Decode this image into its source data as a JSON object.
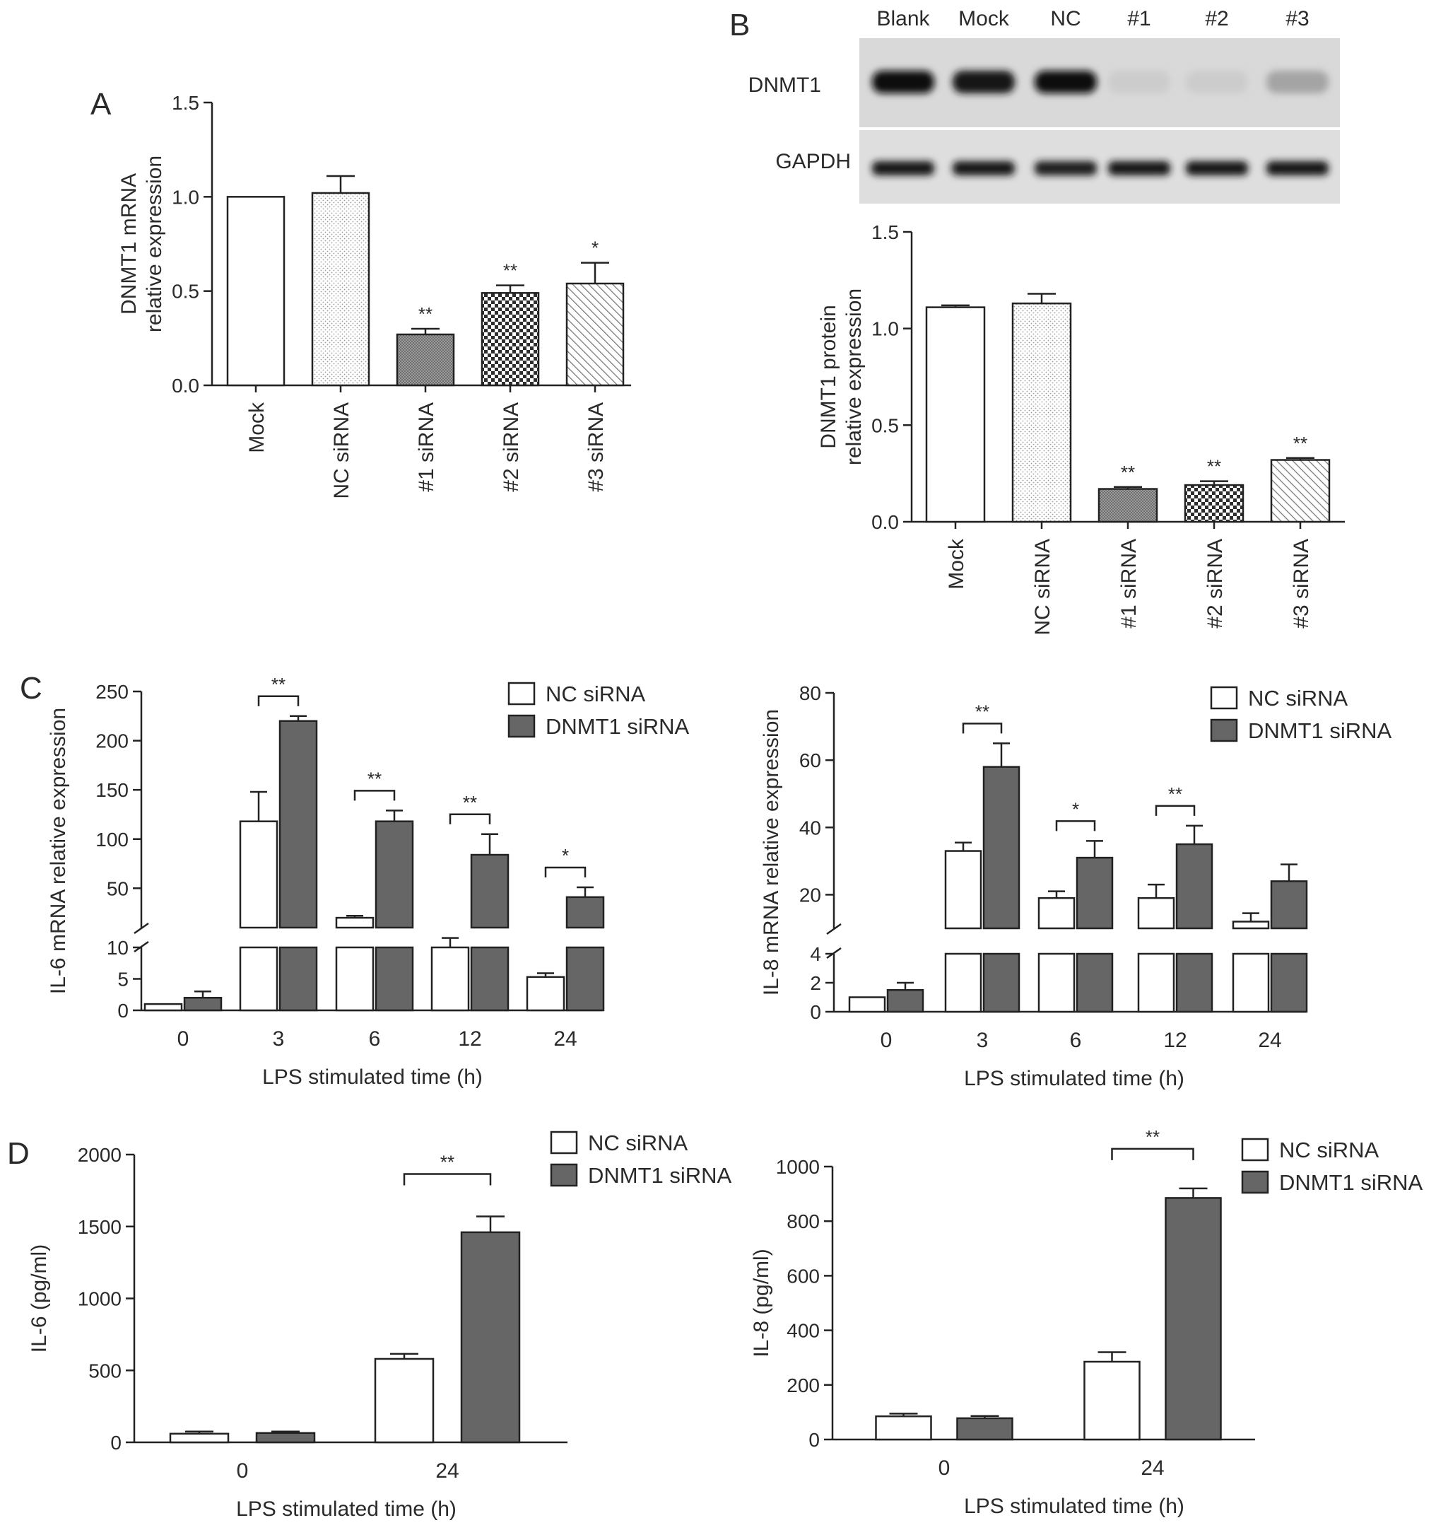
{
  "panel_labels": [
    "A",
    "B",
    "C",
    "D"
  ],
  "colors": {
    "nc": "#ffffff",
    "dnmt1": "#666666",
    "axis": "#222222",
    "text": "#2a2a2a"
  },
  "blot": {
    "lanes": [
      "Blank",
      "Mock",
      "NC",
      "#1",
      "#2",
      "#3"
    ],
    "rows": [
      "DNMT1",
      "GAPDH"
    ],
    "dnmt1_intensity": [
      1.0,
      0.95,
      1.0,
      0.12,
      0.12,
      0.3
    ],
    "gapdh_intensity": [
      0.95,
      0.95,
      0.92,
      0.95,
      0.95,
      0.95
    ]
  },
  "chart_data": [
    {
      "id": "A",
      "type": "bar",
      "categories": [
        "Mock",
        "NC siRNA",
        "#1 siRNA",
        "#2 siRNA",
        "#3 siRNA"
      ],
      "values": [
        1.0,
        1.02,
        0.27,
        0.49,
        0.54
      ],
      "errors": [
        0,
        0.09,
        0.03,
        0.04,
        0.11
      ],
      "significance": [
        "",
        "",
        "**",
        "**",
        "*"
      ],
      "patterns": [
        "none",
        "dots",
        "dense",
        "checker",
        "diag"
      ],
      "ylabel": [
        "DNMT1 mRNA",
        "relative expression"
      ],
      "ylim": [
        0,
        1.5
      ],
      "yticks": [
        0.0,
        0.5,
        1.0,
        1.5
      ],
      "ytick_labels": [
        "0.0",
        "0.5",
        "1.0",
        "1.5"
      ]
    },
    {
      "id": "B",
      "type": "bar",
      "categories": [
        "Mock",
        "NC siRNA",
        "#1 siRNA",
        "#2 siRNA",
        "#3 siRNA"
      ],
      "values": [
        1.11,
        1.13,
        0.17,
        0.19,
        0.32
      ],
      "errors": [
        0.01,
        0.05,
        0.01,
        0.02,
        0.01
      ],
      "significance": [
        "",
        "",
        "**",
        "**",
        "**"
      ],
      "patterns": [
        "none",
        "dots",
        "dense",
        "checker",
        "diag"
      ],
      "ylabel": [
        "DNMT1 protein",
        "relative expression"
      ],
      "ylim": [
        0,
        1.5
      ],
      "yticks": [
        0.0,
        0.5,
        1.0,
        1.5
      ],
      "ytick_labels": [
        "0.0",
        "0.5",
        "1.0",
        "1.5"
      ]
    },
    {
      "id": "C-left",
      "type": "bar",
      "x": [
        "0",
        "3",
        "6",
        "12",
        "24"
      ],
      "series": [
        {
          "name": "NC siRNA",
          "values": [
            1,
            118,
            20,
            10,
            5.3
          ],
          "errors": [
            0,
            30,
            2,
            1.5,
            0.6
          ]
        },
        {
          "name": "DNMT1 siRNA",
          "values": [
            2,
            220,
            118,
            84,
            41
          ],
          "errors": [
            1,
            5,
            11,
            21,
            10
          ]
        }
      ],
      "significance": [
        "",
        "**",
        "**",
        "**",
        "*"
      ],
      "ylabel": "IL-6 mRNA relative expression",
      "xlabel": "LPS stimulated time (h)",
      "broken_axis": {
        "lower": [
          0,
          10
        ],
        "upper": [
          10,
          250
        ]
      },
      "yticks_lower": [
        0,
        5,
        10
      ],
      "yticks_upper": [
        50,
        100,
        150,
        200,
        250
      ],
      "ytick_labels_lower": [
        "0",
        "5",
        "10"
      ],
      "ytick_labels_upper": [
        "50",
        "100",
        "150",
        "200",
        "250"
      ],
      "legend": [
        "NC siRNA",
        "DNMT1 siRNA"
      ]
    },
    {
      "id": "C-right",
      "type": "bar",
      "x": [
        "0",
        "3",
        "6",
        "12",
        "24"
      ],
      "series": [
        {
          "name": "NC siRNA",
          "values": [
            1,
            33,
            19,
            19,
            12
          ],
          "errors": [
            0,
            2.5,
            2,
            4,
            2.5
          ]
        },
        {
          "name": "DNMT1 siRNA",
          "values": [
            1.5,
            58,
            31,
            35,
            24
          ],
          "errors": [
            0.5,
            7,
            5,
            5.5,
            5
          ]
        }
      ],
      "significance": [
        "",
        "**",
        "*",
        "**",
        ""
      ],
      "ylabel": "IL-8 mRNA relative expression",
      "xlabel": "LPS stimulated time (h)",
      "broken_axis": {
        "lower": [
          0,
          4
        ],
        "upper": [
          10,
          80
        ]
      },
      "yticks_lower": [
        0,
        2,
        4
      ],
      "yticks_upper": [
        20,
        40,
        60,
        80
      ],
      "ytick_labels_lower": [
        "0",
        "2",
        "4"
      ],
      "ytick_labels_upper": [
        "20",
        "40",
        "60",
        "80"
      ],
      "legend": [
        "NC siRNA",
        "DNMT1 siRNA"
      ]
    },
    {
      "id": "D-left",
      "type": "bar",
      "x": [
        "0",
        "24"
      ],
      "series": [
        {
          "name": "NC siRNA",
          "values": [
            60,
            580
          ],
          "errors": [
            15,
            35
          ]
        },
        {
          "name": "DNMT1 siRNA",
          "values": [
            65,
            1460
          ],
          "errors": [
            10,
            110
          ]
        }
      ],
      "significance": [
        "",
        "**"
      ],
      "ylabel": "IL-6 (pg/ml)",
      "xlabel": "LPS stimulated time (h)",
      "ylim": [
        0,
        2000
      ],
      "yticks": [
        0,
        500,
        1000,
        1500,
        2000
      ],
      "ytick_labels": [
        "0",
        "500",
        "1000",
        "1500",
        "2000"
      ],
      "legend": [
        "NC siRNA",
        "DNMT1 siRNA"
      ]
    },
    {
      "id": "D-right",
      "type": "bar",
      "x": [
        "0",
        "24"
      ],
      "series": [
        {
          "name": "NC siRNA",
          "values": [
            85,
            285
          ],
          "errors": [
            10,
            35
          ]
        },
        {
          "name": "DNMT1 siRNA",
          "values": [
            78,
            885
          ],
          "errors": [
            8,
            35
          ]
        }
      ],
      "significance": [
        "",
        "**"
      ],
      "ylabel": "IL-8 (pg/ml)",
      "xlabel": "LPS stimulated time (h)",
      "ylim": [
        0,
        1000
      ],
      "yticks": [
        0,
        200,
        400,
        600,
        800,
        1000
      ],
      "ytick_labels": [
        "0",
        "200",
        "400",
        "600",
        "800",
        "1000"
      ],
      "legend": [
        "NC siRNA",
        "DNMT1 siRNA"
      ]
    }
  ]
}
